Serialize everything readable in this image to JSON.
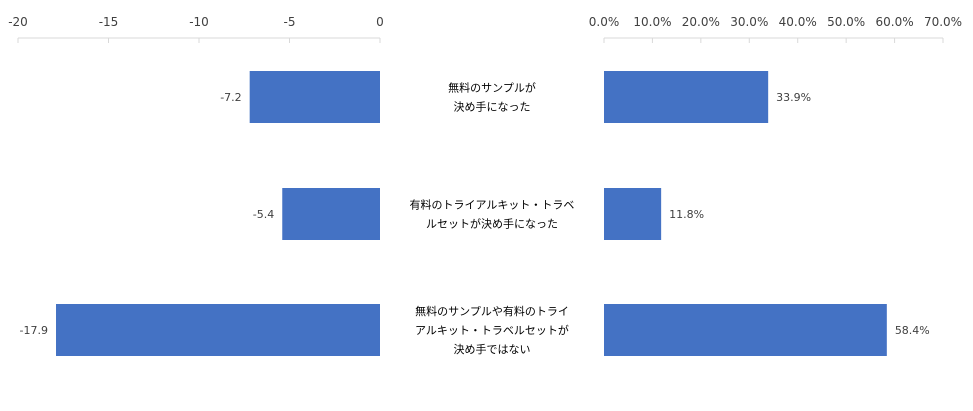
{
  "chart_data": {
    "type": "bar",
    "orientation": "horizontal",
    "categories": [
      "無料のサンプルが決め手になった",
      "有料のトライアルキット・トラベルセットが決め手になった",
      "無料のサンプルや有料のトライアルキット・トラベルセットが決め手ではない"
    ],
    "category_lines": [
      [
        "無料のサンプルが",
        "決め手になった"
      ],
      [
        "有料のトライアルキット・トラベ",
        "ルセットが決め手になった"
      ],
      [
        "無料のサンプルや有料のトライ",
        "アルキット・トラベルセットが",
        "決め手ではない"
      ]
    ],
    "series": [
      {
        "values": [
          -7.2,
          -5.4,
          -17.9
        ],
        "labels": [
          "-7.2",
          "-5.4",
          "-17.9"
        ],
        "xlim": [
          -20,
          0
        ],
        "ticks": [
          -20,
          -15,
          -10,
          -5,
          0
        ],
        "tick_labels": [
          "-20",
          "-15",
          "-10",
          "-5",
          "0"
        ]
      },
      {
        "values": [
          33.9,
          11.8,
          58.4
        ],
        "labels": [
          "33.9%",
          "11.8%",
          "58.4%"
        ],
        "xlim": [
          0,
          70
        ],
        "ticks": [
          0,
          10,
          20,
          30,
          40,
          50,
          60,
          70
        ],
        "tick_labels": [
          "0.0%",
          "10.0%",
          "20.0%",
          "30.0%",
          "40.0%",
          "50.0%",
          "60.0%",
          "70.0%"
        ]
      }
    ],
    "axis_position": "top",
    "grid": false,
    "legend": "none",
    "bar_color": "#4472C4"
  }
}
